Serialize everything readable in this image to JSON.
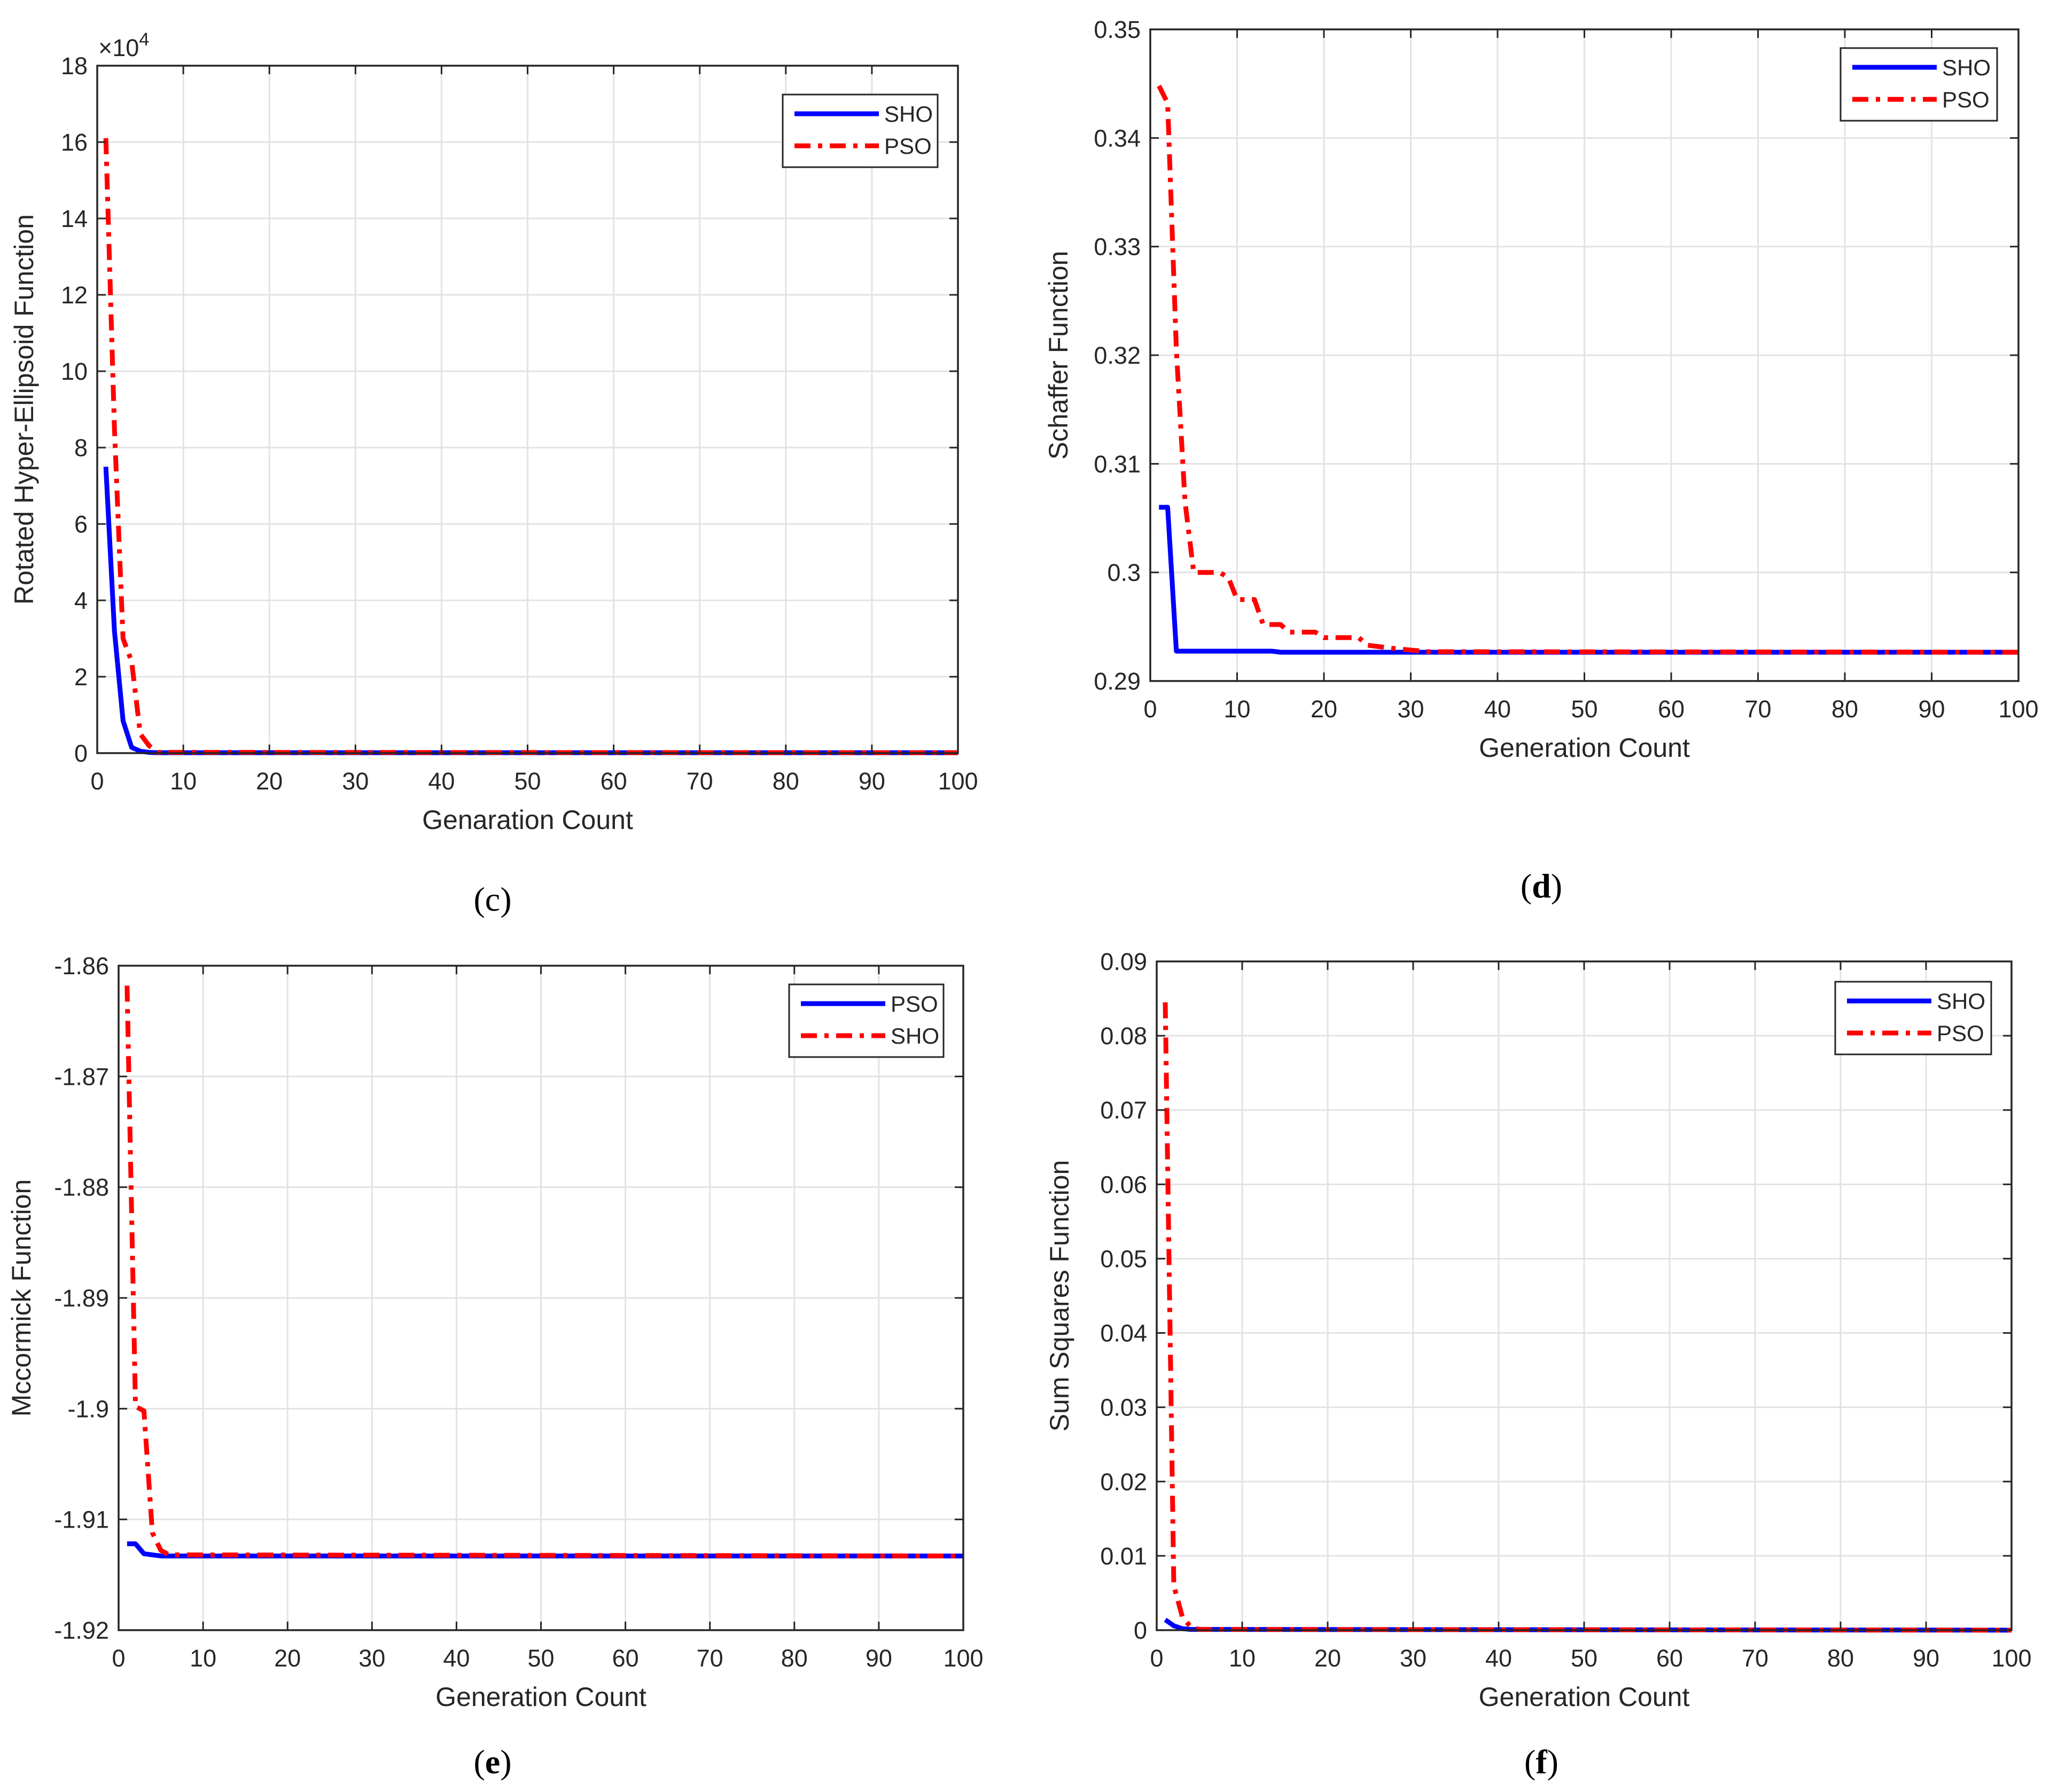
{
  "chart_data": [
    {
      "id": "c",
      "type": "line",
      "caption_letter": "c",
      "caption_bold": false,
      "title": "",
      "xlabel": "Genaration Count",
      "ylabel": "Rotated Hyper-Ellipsoid Function",
      "exponent_label": "×10^4",
      "exponent_base": "×10",
      "exponent_power": "4",
      "xlim": [
        0,
        100
      ],
      "ylim": [
        0,
        18
      ],
      "xticks": [
        0,
        10,
        20,
        30,
        40,
        50,
        60,
        70,
        80,
        90,
        100
      ],
      "yticks": [
        0,
        2,
        4,
        6,
        8,
        10,
        12,
        14,
        16,
        18
      ],
      "ytick_labels": [
        "0",
        "2",
        "4",
        "6",
        "8",
        "10",
        "12",
        "14",
        "16",
        "18"
      ],
      "grid": true,
      "legend_position": "top-right",
      "series": [
        {
          "name": "SHO",
          "color": "#0000ff",
          "style": "solid",
          "points": [
            [
              1,
              7.5
            ],
            [
              2,
              3.2
            ],
            [
              3,
              0.85
            ],
            [
              4,
              0.15
            ],
            [
              5,
              0.05
            ],
            [
              6,
              0.02
            ],
            [
              7,
              0.01
            ],
            [
              100,
              0.01
            ]
          ]
        },
        {
          "name": "PSO",
          "color": "#ff0000",
          "style": "dashdot",
          "points": [
            [
              1,
              16.1
            ],
            [
              2,
              8.5
            ],
            [
              3,
              3.0
            ],
            [
              4,
              2.4
            ],
            [
              5,
              0.5
            ],
            [
              6,
              0.2
            ],
            [
              7,
              0.02
            ],
            [
              100,
              0.01
            ]
          ]
        }
      ]
    },
    {
      "id": "d",
      "type": "line",
      "caption_letter": "d",
      "caption_bold": true,
      "title": "",
      "xlabel": "Generation Count",
      "ylabel": "Schaffer Function",
      "xlim": [
        0,
        100
      ],
      "ylim": [
        0.29,
        0.35
      ],
      "xticks": [
        0,
        10,
        20,
        30,
        40,
        50,
        60,
        70,
        80,
        90,
        100
      ],
      "yticks": [
        0.29,
        0.3,
        0.31,
        0.32,
        0.33,
        0.34,
        0.35
      ],
      "ytick_labels": [
        "0.29",
        "0.3",
        "0.31",
        "0.32",
        "0.33",
        "0.34",
        "0.35"
      ],
      "grid": true,
      "legend_position": "top-right",
      "series": [
        {
          "name": "SHO",
          "color": "#0000ff",
          "style": "solid",
          "points": [
            [
              1,
              0.306
            ],
            [
              2,
              0.306
            ],
            [
              3,
              0.29275
            ],
            [
              14,
              0.29275
            ],
            [
              15,
              0.29265
            ],
            [
              100,
              0.29265
            ]
          ]
        },
        {
          "name": "PSO",
          "color": "#ff0000",
          "style": "dashdot",
          "points": [
            [
              1,
              0.3448
            ],
            [
              2,
              0.3432
            ],
            [
              3,
              0.3205
            ],
            [
              4,
              0.3065
            ],
            [
              5,
              0.3
            ],
            [
              8,
              0.3
            ],
            [
              9,
              0.2995
            ],
            [
              10,
              0.2975
            ],
            [
              12,
              0.2975
            ],
            [
              13,
              0.2952
            ],
            [
              15,
              0.2952
            ],
            [
              16,
              0.2945
            ],
            [
              19,
              0.2945
            ],
            [
              20,
              0.294
            ],
            [
              24,
              0.294
            ],
            [
              25,
              0.2933
            ],
            [
              28,
              0.293
            ],
            [
              32,
              0.2927
            ],
            [
              100,
              0.29265
            ]
          ]
        }
      ]
    },
    {
      "id": "e",
      "type": "line",
      "caption_letter": "e",
      "caption_bold": true,
      "title": "",
      "xlabel": "Generation Count",
      "ylabel": "Mccormick Function",
      "xlim": [
        0,
        100
      ],
      "ylim": [
        -1.92,
        -1.86
      ],
      "xticks": [
        0,
        10,
        20,
        30,
        40,
        50,
        60,
        70,
        80,
        90,
        100
      ],
      "yticks": [
        -1.92,
        -1.91,
        -1.9,
        -1.89,
        -1.88,
        -1.87,
        -1.86
      ],
      "ytick_labels": [
        "-1.92",
        "-1.91",
        "-1.9",
        "-1.89",
        "-1.88",
        "-1.87",
        "-1.86"
      ],
      "grid": true,
      "legend_position": "top-right",
      "series": [
        {
          "name": "PSO",
          "color": "#0000ff",
          "style": "solid",
          "points": [
            [
              1,
              -1.9122
            ],
            [
              2,
              -1.9122
            ],
            [
              3,
              -1.9131
            ],
            [
              5,
              -1.9133
            ],
            [
              100,
              -1.9133
            ]
          ]
        },
        {
          "name": "SHO",
          "color": "#ff0000",
          "style": "dashdot",
          "points": [
            [
              1,
              -1.8618
            ],
            [
              2,
              -1.8998
            ],
            [
              3,
              -1.9002
            ],
            [
              4,
              -1.9112
            ],
            [
              5,
              -1.9128
            ],
            [
              6,
              -1.9132
            ],
            [
              100,
              -1.9133
            ]
          ]
        }
      ]
    },
    {
      "id": "f",
      "type": "line",
      "caption_letter": "f",
      "caption_bold": true,
      "title": "",
      "xlabel": "Generation Count",
      "ylabel": "Sum Squares Function",
      "xlim": [
        0,
        100
      ],
      "ylim": [
        0,
        0.09
      ],
      "xticks": [
        0,
        10,
        20,
        30,
        40,
        50,
        60,
        70,
        80,
        90,
        100
      ],
      "yticks": [
        0,
        0.01,
        0.02,
        0.03,
        0.04,
        0.05,
        0.06,
        0.07,
        0.08,
        0.09
      ],
      "ytick_labels": [
        "0",
        "0.01",
        "0.02",
        "0.03",
        "0.04",
        "0.05",
        "0.06",
        "0.07",
        "0.08",
        "0.09"
      ],
      "grid": true,
      "legend_position": "top-right",
      "series": [
        {
          "name": "SHO",
          "color": "#0000ff",
          "style": "solid",
          "points": [
            [
              1,
              0.0014
            ],
            [
              2,
              0.0006
            ],
            [
              3,
              0.0002
            ],
            [
              4,
              0.0001
            ],
            [
              100,
              0.0
            ]
          ]
        },
        {
          "name": "PSO",
          "color": "#ff0000",
          "style": "dashdot",
          "points": [
            [
              1,
              0.0845
            ],
            [
              2,
              0.006
            ],
            [
              3,
              0.0018
            ],
            [
              4,
              0.0004
            ],
            [
              5,
              0.0001
            ],
            [
              100,
              0.0
            ]
          ]
        }
      ]
    }
  ]
}
